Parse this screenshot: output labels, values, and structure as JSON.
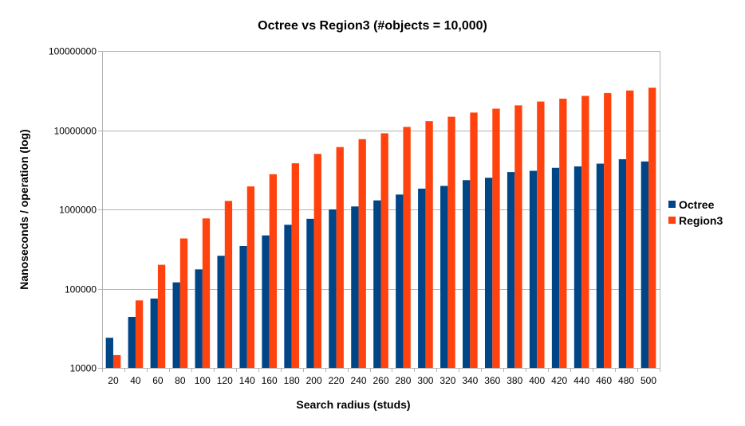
{
  "chart_data": {
    "type": "bar",
    "title": "Octree vs Region3 (#objects = 10,000)",
    "xlabel": "Search radius (studs)",
    "ylabel": "Nanoseconds / operation (log)",
    "y_scale": "log",
    "ylim": [
      10000,
      100000000
    ],
    "y_ticks": [
      10000,
      100000,
      1000000,
      10000000,
      100000000
    ],
    "y_tick_labels": [
      "10000",
      "100000",
      "1000000",
      "10000000",
      "100000000"
    ],
    "grid": true,
    "legend_position": "right",
    "categories": [
      "20",
      "40",
      "60",
      "80",
      "100",
      "120",
      "140",
      "160",
      "180",
      "200",
      "220",
      "240",
      "260",
      "280",
      "300",
      "320",
      "340",
      "360",
      "380",
      "400",
      "420",
      "440",
      "460",
      "480",
      "500"
    ],
    "series": [
      {
        "name": "Octree",
        "color": "#004586",
        "values": [
          24000,
          44000,
          75000,
          120000,
          175000,
          260000,
          345000,
          470000,
          640000,
          760000,
          1000000,
          1090000,
          1300000,
          1540000,
          1830000,
          1980000,
          2340000,
          2510000,
          2960000,
          3070000,
          3350000,
          3490000,
          3780000,
          4300000,
          4030000
        ]
      },
      {
        "name": "Region3",
        "color": "#ff420e",
        "values": [
          14500,
          71000,
          200000,
          430000,
          770000,
          1280000,
          1950000,
          2780000,
          3820000,
          5020000,
          6120000,
          7700000,
          9130000,
          11000000,
          13000000,
          14780000,
          16690000,
          18680000,
          20560000,
          22990000,
          25000000,
          27100000,
          29400000,
          31700000,
          34400000
        ]
      }
    ]
  }
}
